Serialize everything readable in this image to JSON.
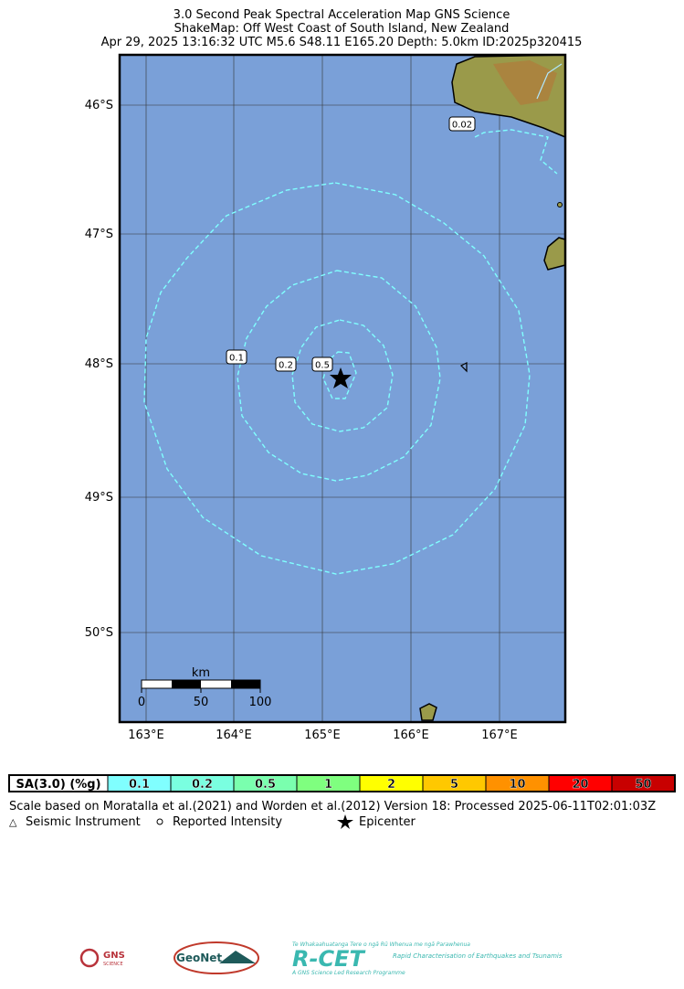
{
  "header": {
    "title": "3.0 Second Peak Spectral Acceleration Map GNS Science",
    "subtitle": "ShakeMap: Off West Coast of South Island, New Zealand",
    "event": "Apr 29, 2025 13:16:32 UTC M5.6 S48.11 E165.20 Depth: 5.0km ID:2025p320415"
  },
  "map": {
    "lat_labels": [
      "46°S",
      "47°S",
      "48°S",
      "49°S",
      "50°S"
    ],
    "lon_labels": [
      "163°E",
      "164°E",
      "165°E",
      "166°E",
      "167°E"
    ],
    "contour_labels": [
      "0.02",
      "0.1",
      "0.2",
      "0.5"
    ],
    "scale_bar": {
      "unit": "km",
      "ticks": [
        "0",
        "50",
        "100"
      ]
    }
  },
  "legend": {
    "label": "SA(3.0) (%g)",
    "bins": [
      {
        "label": "0.1",
        "color": "#80ffff"
      },
      {
        "label": "0.2",
        "color": "#7affe0"
      },
      {
        "label": "0.5",
        "color": "#7affae"
      },
      {
        "label": "1",
        "color": "#7fff7f"
      },
      {
        "label": "2",
        "color": "#ffff00"
      },
      {
        "label": "5",
        "color": "#ffc800"
      },
      {
        "label": "10",
        "color": "#ff9100"
      },
      {
        "label": "20",
        "color": "#ff0000"
      },
      {
        "label": "50",
        "color": "#c80000"
      }
    ]
  },
  "notes": {
    "scale": "Scale based on Moratalla et al.(2021) and Worden et al.(2012) Version 18: Processed 2025-06-11T02:01:03Z",
    "key": [
      "Seismic Instrument",
      "Reported Intensity",
      "Epicenter"
    ]
  },
  "logos": {
    "gns": "GNS",
    "gns_sub": "SCIENCE",
    "geonet": "GeoNet",
    "rcet": "R-CET",
    "rcet_maori": "Te Whakaahuatanga Tere o ngā Rū Whenua me ngā Parawhenua",
    "rcet_desc": "Rapid Characterisation of Earthquakes and Tsunamis",
    "rcet_foot": "A GNS Science Led Research Programme"
  }
}
